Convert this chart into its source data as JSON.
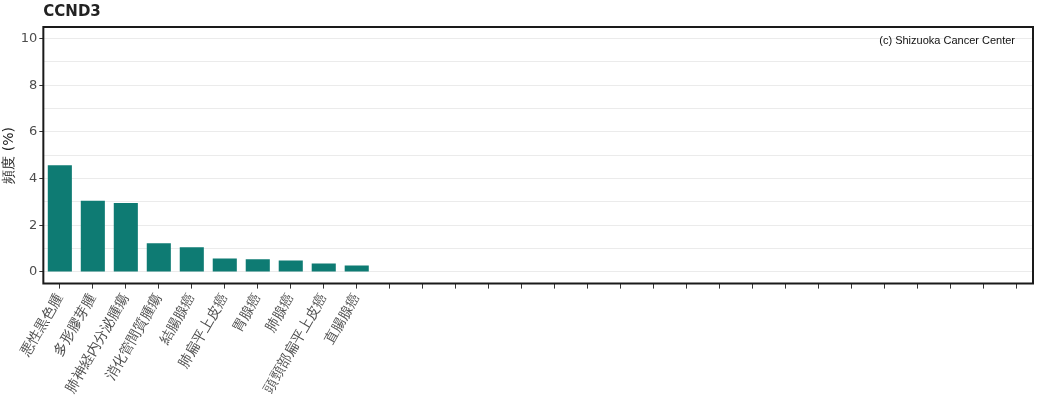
{
  "chart_data": {
    "type": "bar",
    "title": "CCND3",
    "ylabel": "頻度 (%)",
    "categories": [
      "悪性黒色腫",
      "多形膠芽腫",
      "肺神経内分泌腫瘍",
      "消化管間質腫瘍",
      "結腸腺癌",
      "肺扁平上皮癌",
      "胃腺癌",
      "肺腺癌",
      "頭頸部扁平上皮癌",
      "直腸腺癌",
      null,
      null,
      null,
      null,
      null,
      null,
      null,
      null,
      null,
      null,
      null,
      null,
      null,
      null,
      null,
      null,
      null,
      null,
      null,
      null
    ],
    "values": [
      4.57,
      3.05,
      2.96,
      1.23,
      1.06,
      0.58,
      0.54,
      0.49,
      0.36,
      0.28,
      null,
      null,
      null,
      null,
      null,
      null,
      null,
      null,
      null,
      null,
      null,
      null,
      null,
      null,
      null,
      null,
      null,
      null,
      null,
      null
    ],
    "color": "#0e7b73",
    "ylim": [
      -0.5,
      10.5
    ],
    "yticks": [
      0,
      {
        "value": 1,
        "label": null
      },
      2,
      {
        "value": 3,
        "label": null
      },
      4,
      {
        "value": 5,
        "label": null
      },
      6,
      {
        "value": 7,
        "label": null
      },
      8,
      {
        "value": 9,
        "label": null
      },
      10
    ],
    "grid": "y",
    "annotations": [
      "(c) Shizuoka Cancer Center"
    ]
  }
}
